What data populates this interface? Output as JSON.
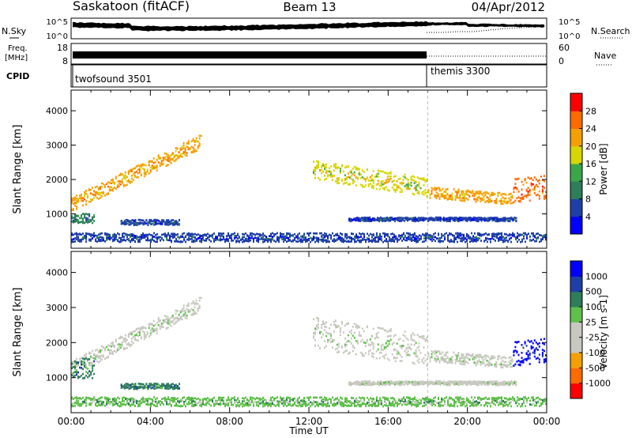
{
  "header": {
    "station": "Saskatoon (fitACF)",
    "beam": "Beam 13",
    "date": "04/Apr/2012"
  },
  "top_panel": {
    "left_label": "N.Sky",
    "left_ticks": [
      "10^5",
      "10^0"
    ],
    "right_ticks": [
      "10^5",
      "10^0"
    ],
    "right_label": "N.Search"
  },
  "freq_panel": {
    "left_label_line1": "Freq.",
    "left_label_line2": "[MHz]",
    "left_ticks": [
      "18",
      "8"
    ],
    "right_ticks": [
      "60",
      "0"
    ],
    "right_label": "Nave"
  },
  "cpid_panel": {
    "label": "CPID",
    "programs": [
      {
        "name": "twofsound 3501",
        "start_hour": 0
      },
      {
        "name": "themis 3300",
        "start_hour": 18
      }
    ]
  },
  "colors": {
    "power_scale": [
      "#0000ff",
      "#1f3fa8",
      "#2e7d5b",
      "#3aa64a",
      "#d6d600",
      "#f5a000",
      "#ff6a00",
      "#ff0000"
    ],
    "velocity_scale": [
      "#ff0000",
      "#ff6a00",
      "#f5a000",
      "#c8c8c0",
      "#c8c8c0",
      "#5fc04a",
      "#2e7d5b",
      "#1f3fa8",
      "#0000ff"
    ],
    "ground_scatter": "#c8c8c0"
  },
  "chart_data": [
    {
      "type": "heatmap",
      "title": "Power",
      "ylabel": "Slant Range [km]",
      "colorbar_label": "Power [dB]",
      "colorbar_ticks": [
        "4",
        "8",
        "12",
        "16",
        "20",
        "24",
        "28"
      ],
      "ylim": [
        0,
        4600
      ],
      "yticks": [
        1000,
        2000,
        3000,
        4000
      ],
      "xlim": [
        0,
        24
      ],
      "xticks": [
        "00:00",
        "04:00",
        "08:00",
        "12:00",
        "16:00",
        "20:00",
        "00:00"
      ],
      "bands": [
        {
          "h0": 0.0,
          "h1": 6.6,
          "r0": 1300,
          "r1": 3150,
          "thick": 420,
          "level": 5
        },
        {
          "h0": 0.0,
          "h1": 1.2,
          "r0": 900,
          "r1": 900,
          "thick": 280,
          "level": 2
        },
        {
          "h0": 2.5,
          "h1": 5.5,
          "r0": 780,
          "r1": 780,
          "thick": 160,
          "level": 1
        },
        {
          "h0": 12.2,
          "h1": 18.0,
          "r0": 2300,
          "r1": 1800,
          "thick": 550,
          "level": 4
        },
        {
          "h0": 18.0,
          "h1": 22.3,
          "r0": 1650,
          "r1": 1450,
          "thick": 320,
          "level": 5
        },
        {
          "h0": 22.3,
          "h1": 24.0,
          "r0": 1700,
          "r1": 1800,
          "thick": 700,
          "level": 6
        },
        {
          "h0": 14.0,
          "h1": 22.5,
          "r0": 870,
          "r1": 870,
          "thick": 110,
          "level": 1
        },
        {
          "h0": 0.0,
          "h1": 24.0,
          "r0": 340,
          "r1": 340,
          "thick": 260,
          "level": 1
        }
      ]
    },
    {
      "type": "heatmap",
      "title": "Velocity",
      "ylabel": "Slant Range [km]",
      "xlabel": "Time UT",
      "colorbar_label": "Velocity [m s-1]",
      "colorbar_ticks": [
        "-1000",
        "-500",
        "-100",
        "-25",
        "25",
        "100",
        "500",
        "1000"
      ],
      "ylim": [
        0,
        4600
      ],
      "yticks": [
        1000,
        2000,
        3000,
        4000
      ],
      "xlim": [
        0,
        24
      ],
      "xticks": [
        "00:00",
        "04:00",
        "08:00",
        "12:00",
        "16:00",
        "20:00",
        "00:00"
      ],
      "bands": [
        {
          "h0": 0.0,
          "h1": 6.6,
          "r0": 1300,
          "r1": 3150,
          "thick": 420,
          "level": 4
        },
        {
          "h0": 0.0,
          "h1": 1.2,
          "r0": 1300,
          "r1": 1300,
          "thick": 600,
          "level": 6
        },
        {
          "h0": 2.5,
          "h1": 5.5,
          "r0": 780,
          "r1": 780,
          "thick": 160,
          "level": 6
        },
        {
          "h0": 12.2,
          "h1": 18.0,
          "r0": 2300,
          "r1": 1800,
          "thick": 900,
          "level": 4
        },
        {
          "h0": 18.0,
          "h1": 22.3,
          "r0": 1650,
          "r1": 1450,
          "thick": 320,
          "level": 4
        },
        {
          "h0": 22.3,
          "h1": 24.0,
          "r0": 1700,
          "r1": 1800,
          "thick": 700,
          "level": 8
        },
        {
          "h0": 14.0,
          "h1": 22.5,
          "r0": 870,
          "r1": 870,
          "thick": 110,
          "level": 4
        },
        {
          "h0": 0.0,
          "h1": 24.0,
          "r0": 340,
          "r1": 340,
          "thick": 260,
          "level": 5
        }
      ]
    }
  ]
}
